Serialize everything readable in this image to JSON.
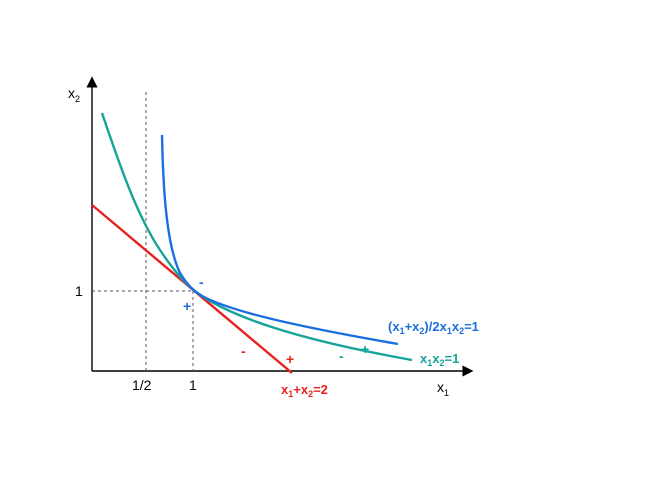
{
  "axes": {
    "x_label": "x",
    "x_sub": "1",
    "y_label": "x",
    "y_sub": "2",
    "x_ticks": [
      "1/2",
      "1"
    ],
    "y_ticks": [
      "1"
    ]
  },
  "curves": {
    "line": {
      "label_parts": [
        "x",
        "1",
        "+x",
        "2",
        "=2"
      ],
      "color": "#e8211f"
    },
    "hyperbola": {
      "label_parts": [
        "x",
        "1",
        "x",
        "2",
        "=1"
      ],
      "color": "#16a39a"
    },
    "ratio": {
      "label_parts": [
        "(x",
        "1",
        "+x",
        "2",
        ")/2x",
        "1",
        "x",
        "2",
        "=1"
      ],
      "color": "#1a6fe0"
    }
  },
  "signs": {
    "blue_minus": "-",
    "blue_plus": "+",
    "red_minus": "-",
    "red_plus": "+",
    "teal_minus": "-",
    "teal_plus": "+"
  },
  "colors": {
    "axis": "#000000",
    "guide": "#555555"
  }
}
